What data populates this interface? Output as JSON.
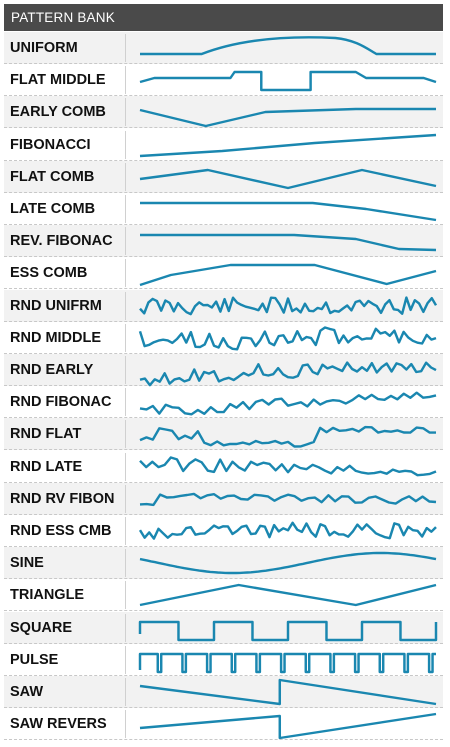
{
  "panel": {
    "title": "PATTERN BANK",
    "accent_color": "#1a87b0",
    "header_color": "#4a4a4a"
  },
  "patterns": [
    {
      "label": "UNIFORM",
      "shape": "uniform"
    },
    {
      "label": "FLAT MIDDLE",
      "shape": "flat-middle"
    },
    {
      "label": "EARLY COMB",
      "shape": "early-comb"
    },
    {
      "label": "FIBONACCI",
      "shape": "fibonacci"
    },
    {
      "label": "FLAT COMB",
      "shape": "flat-comb"
    },
    {
      "label": "LATE COMB",
      "shape": "late-comb"
    },
    {
      "label": "REV. FIBONAC",
      "shape": "rev-fibonacci"
    },
    {
      "label": "ESS COMB",
      "shape": "ess-comb"
    },
    {
      "label": "RND UNIFRM",
      "shape": "random-uniform"
    },
    {
      "label": "RND MIDDLE",
      "shape": "random-middle"
    },
    {
      "label": "RND EARLY",
      "shape": "random-early"
    },
    {
      "label": "RND FIBONAC",
      "shape": "random-fibonacci"
    },
    {
      "label": "RND FLAT",
      "shape": "random-flat"
    },
    {
      "label": "RND LATE",
      "shape": "random-late"
    },
    {
      "label": "RND RV FIBON",
      "shape": "random-rev-fibonacci"
    },
    {
      "label": "RND ESS CMB",
      "shape": "random-ess-comb"
    },
    {
      "label": "SINE",
      "shape": "sine"
    },
    {
      "label": "TRIANGLE",
      "shape": "triangle"
    },
    {
      "label": "SQUARE",
      "shape": "square"
    },
    {
      "label": "PULSE",
      "shape": "pulse"
    },
    {
      "label": "SAW",
      "shape": "saw"
    },
    {
      "label": "SAW REVERS",
      "shape": "saw-reverse"
    }
  ]
}
